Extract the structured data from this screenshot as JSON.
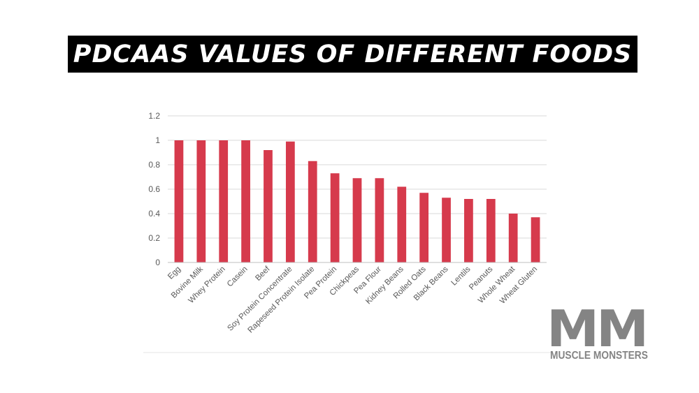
{
  "title": "PDCAAS VALUES OF DIFFERENT FOODS",
  "logo": {
    "mark": "MM",
    "text": "MUSCLE MONSTERS"
  },
  "colors": {
    "bar": "#d63a4c",
    "grid": "#d9d9d9",
    "axis": "#bfbfbf",
    "tick_text": "#595959",
    "banner": "#000000",
    "logo": "#848484"
  },
  "chart_data": {
    "type": "bar",
    "title": "PDCAAS VALUES OF DIFFERENT FOODS",
    "xlabel": "",
    "ylabel": "",
    "ylim": [
      0,
      1.2
    ],
    "yticks": [
      "0",
      "0.2",
      "0.4",
      "0.6",
      "0.8",
      "1",
      "1.2"
    ],
    "grid": true,
    "categories": [
      "Egg",
      "Bovine Milk",
      "Whey Protein",
      "Casein",
      "Beef",
      "Soy Protein Concentrate",
      "Rapeseed Protein Isolate",
      "Pea Protein",
      "Chickpeas",
      "Pea Flour",
      "Kidney Beans",
      "Rolled Oats",
      "Black Beans",
      "Lentils",
      "Peanuts",
      "Whole Wheat",
      "Wheat Gluten"
    ],
    "values": [
      1.0,
      1.0,
      1.0,
      1.0,
      0.92,
      0.99,
      0.83,
      0.73,
      0.69,
      0.69,
      0.62,
      0.57,
      0.53,
      0.52,
      0.52,
      0.4,
      0.37
    ]
  }
}
